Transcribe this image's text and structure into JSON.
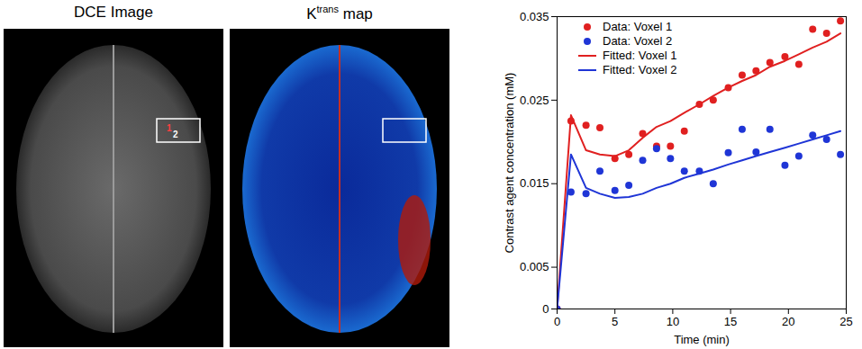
{
  "chart_data": {
    "type": "line",
    "xlabel": "Time (min)",
    "ylabel": "Contrast agent concentration (mM)",
    "x": [
      0,
      1.2,
      2.5,
      3.7,
      5,
      6.2,
      7.4,
      8.6,
      9.8,
      11,
      12.3,
      13.5,
      14.8,
      16,
      17.2,
      18.4,
      19.7,
      20.9,
      22.1,
      23.3,
      24.5
    ],
    "series": [
      {
        "name": "Data: Voxel 1",
        "type": "scatter",
        "marker": "circle",
        "color": "#e02020",
        "values": [
          0,
          0.0225,
          0.022,
          0.0217,
          0.018,
          0.0185,
          0.021,
          0.0195,
          0.0195,
          0.0213,
          0.0245,
          0.025,
          0.0265,
          0.028,
          0.0285,
          0.0295,
          0.0302,
          0.0293,
          0.0335,
          0.033,
          0.0345
        ]
      },
      {
        "name": "Data: Voxel 2",
        "type": "scatter",
        "marker": "circle",
        "color": "#1f35d6",
        "values": [
          0,
          0.014,
          0.0138,
          0.0165,
          0.0142,
          0.0148,
          0.0178,
          0.0192,
          0.018,
          0.0165,
          0.0165,
          0.015,
          0.0187,
          0.0215,
          0.0188,
          0.0215,
          0.0172,
          0.0183,
          0.0208,
          0.0203,
          0.0185
        ]
      },
      {
        "name": "Fitted: Voxel 1",
        "type": "line",
        "line_style": "solid",
        "color": "#e02020",
        "values": [
          0,
          0.0232,
          0.019,
          0.0185,
          0.0183,
          0.019,
          0.0205,
          0.0218,
          0.0225,
          0.0235,
          0.0245,
          0.0255,
          0.0265,
          0.0273,
          0.028,
          0.029,
          0.0297,
          0.0305,
          0.0313,
          0.032,
          0.033
        ]
      },
      {
        "name": "Fitted: Voxel 2",
        "type": "line",
        "line_style": "solid",
        "color": "#1f35d6",
        "values": [
          0,
          0.0185,
          0.0145,
          0.0138,
          0.0133,
          0.0134,
          0.0138,
          0.0145,
          0.015,
          0.0157,
          0.0162,
          0.0167,
          0.0173,
          0.0178,
          0.0183,
          0.0188,
          0.0193,
          0.0198,
          0.0203,
          0.0208,
          0.0213
        ]
      }
    ],
    "xlim": [
      0,
      25
    ],
    "xticks": [
      0,
      5,
      10,
      15,
      20,
      25
    ],
    "ylim": [
      0,
      0.035
    ],
    "yticks": [
      0,
      0.005,
      0.015,
      0.025,
      0.035
    ],
    "legend": "top-left"
  },
  "images": [
    {
      "title": "DCE Image",
      "markers": [
        "1",
        "2"
      ]
    },
    {
      "title": "K",
      "title_superscript": "trans",
      "title_suffix": " map"
    }
  ]
}
